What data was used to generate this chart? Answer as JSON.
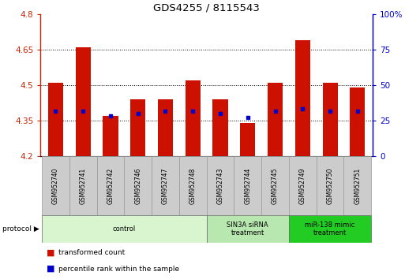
{
  "title": "GDS4255 / 8115543",
  "samples": [
    "GSM952740",
    "GSM952741",
    "GSM952742",
    "GSM952746",
    "GSM952747",
    "GSM952748",
    "GSM952743",
    "GSM952744",
    "GSM952745",
    "GSM952749",
    "GSM952750",
    "GSM952751"
  ],
  "red_values": [
    4.51,
    4.66,
    4.37,
    4.44,
    4.44,
    4.52,
    4.44,
    4.34,
    4.51,
    4.69,
    4.51,
    4.49
  ],
  "blue_values": [
    4.39,
    4.39,
    4.37,
    4.38,
    4.39,
    4.39,
    4.38,
    4.365,
    4.39,
    4.4,
    4.39,
    4.39
  ],
  "y_min": 4.2,
  "y_max": 4.8,
  "y_ticks": [
    4.2,
    4.35,
    4.5,
    4.65,
    4.8
  ],
  "y_tick_labels": [
    "4.2",
    "4.35",
    "4.5",
    "4.65",
    "4.8"
  ],
  "right_y_ticks": [
    0,
    25,
    50,
    75,
    100
  ],
  "right_y_tick_labels": [
    "0",
    "25",
    "50",
    "75",
    "100%"
  ],
  "groups": [
    {
      "label": "control",
      "start": 0,
      "end": 6,
      "color": "#d8f5d0"
    },
    {
      "label": "SIN3A siRNA\ntreatment",
      "start": 6,
      "end": 9,
      "color": "#b8e8b0"
    },
    {
      "label": "miR-138 mimic\ntreatment",
      "start": 9,
      "end": 12,
      "color": "#22cc22"
    }
  ],
  "bar_color": "#cc1100",
  "dot_color": "#0000cc",
  "bar_width": 0.55,
  "left_axis_color": "#cc2200",
  "right_axis_color": "#0000cc",
  "sample_box_color": "#cccccc",
  "grid_yticks": [
    4.35,
    4.5,
    4.65
  ]
}
